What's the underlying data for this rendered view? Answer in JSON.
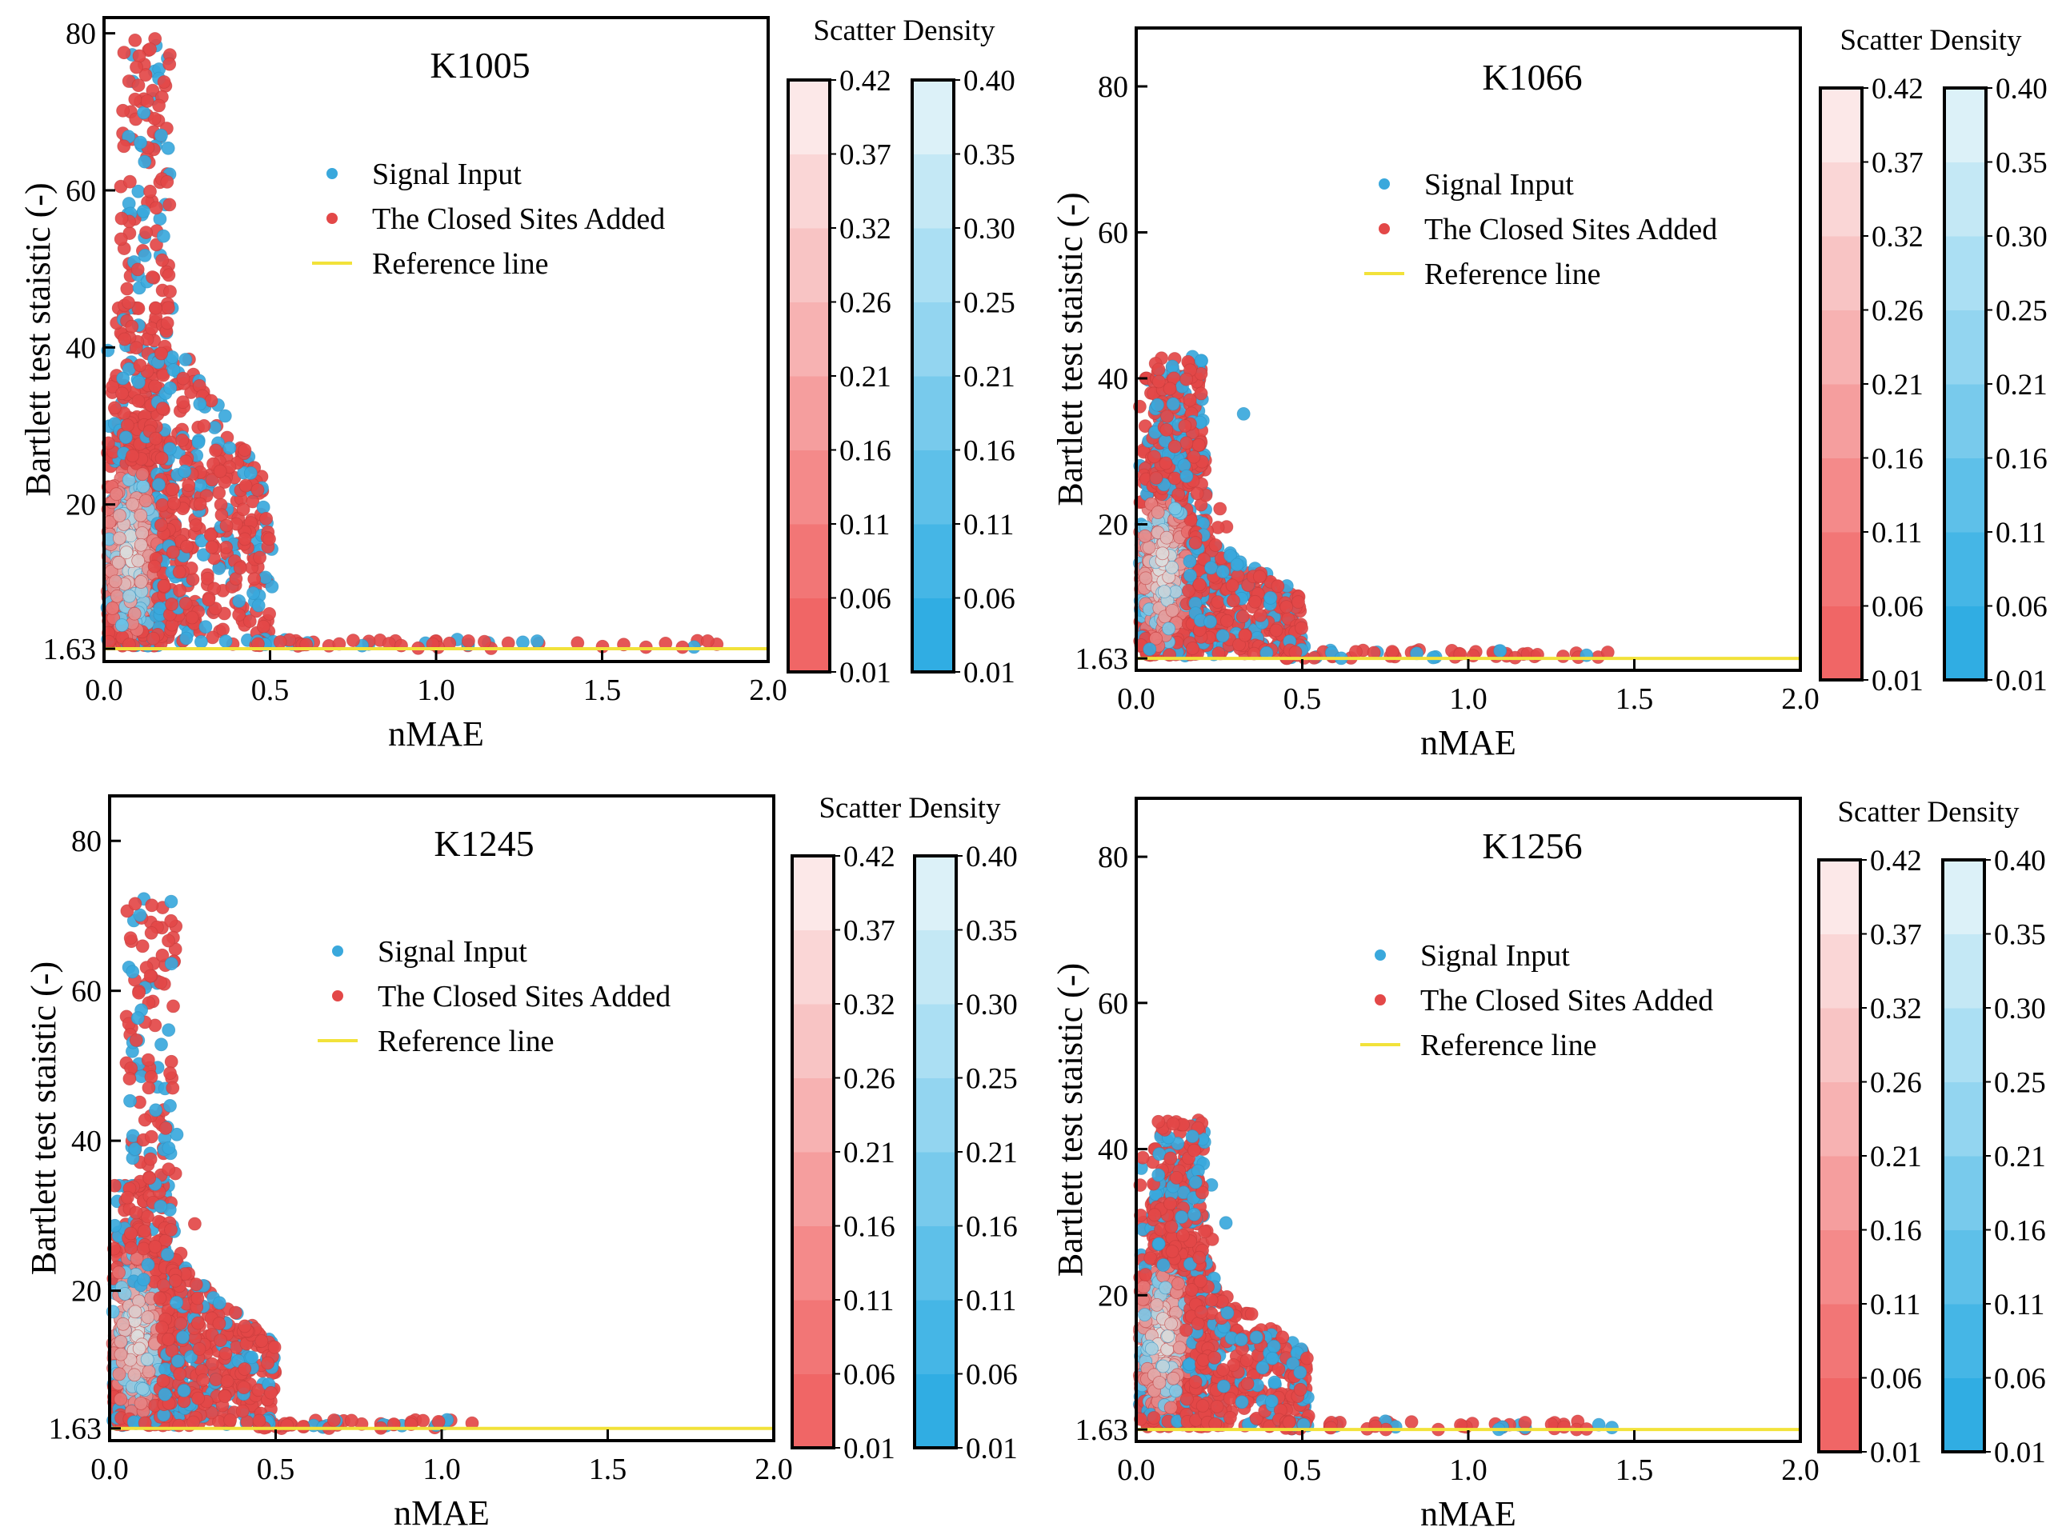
{
  "chart_data": [
    {
      "type": "scatter",
      "title": "K1005",
      "xlabel": "nMAE",
      "ylabel": "Bartlett test staistic (-)",
      "xlim": [
        0,
        2
      ],
      "ylim": [
        0,
        82
      ],
      "xticks": [
        "0.0",
        "0.5",
        "1.0",
        "1.5",
        "2.0"
      ],
      "yticks": [
        {
          "value": 1.63,
          "label": "1.63"
        },
        {
          "value": 20,
          "label": "20"
        },
        {
          "value": 40,
          "label": "40"
        },
        {
          "value": 60,
          "label": "60"
        },
        {
          "value": 80,
          "label": "80"
        }
      ],
      "reference_line": 1.63,
      "shape": {
        "peak_max": 80,
        "cluster_max": 45,
        "second_x": [
          0.15,
          0.5
        ],
        "second_max": 44,
        "tail_max_x": 1.85
      },
      "legend": [
        "Signal Input",
        "The Closed Sites Added",
        "Reference line"
      ],
      "colorbar_title": "Scatter Density",
      "colorbar_red_ticks": [
        "0.42",
        "0.37",
        "0.32",
        "0.26",
        "0.21",
        "0.16",
        "0.11",
        "0.06",
        "0.01"
      ],
      "colorbar_blue_ticks": [
        "0.40",
        "0.35",
        "0.30",
        "0.25",
        "0.21",
        "0.16",
        "0.11",
        "0.06",
        "0.01"
      ]
    },
    {
      "type": "scatter",
      "title": "K1066",
      "xlabel": "nMAE",
      "ylabel": "Bartlett test staistic (-)",
      "xlim": [
        0,
        2
      ],
      "ylim": [
        0,
        88
      ],
      "xticks": [
        "0.0",
        "0.5",
        "1.0",
        "1.5",
        "2.0"
      ],
      "yticks": [
        {
          "value": 1.63,
          "label": "1.63"
        },
        {
          "value": 20,
          "label": "20"
        },
        {
          "value": 40,
          "label": "40"
        },
        {
          "value": 60,
          "label": "60"
        },
        {
          "value": 80,
          "label": "80"
        }
      ],
      "reference_line": 1.63,
      "shape": {
        "peak_max": 43,
        "cluster_max": 40,
        "second_x": [
          0.15,
          0.5
        ],
        "second_max": 18,
        "tail_max_x": 1.45
      },
      "legend": [
        "Signal Input",
        "The Closed Sites Added",
        "Reference line"
      ],
      "colorbar_title": "Scatter Density",
      "colorbar_red_ticks": [
        "0.42",
        "0.37",
        "0.32",
        "0.26",
        "0.21",
        "0.16",
        "0.11",
        "0.06",
        "0.01"
      ],
      "colorbar_blue_ticks": [
        "0.40",
        "0.35",
        "0.30",
        "0.25",
        "0.21",
        "0.16",
        "0.11",
        "0.06",
        "0.01"
      ]
    },
    {
      "type": "scatter",
      "title": "K1245",
      "xlabel": "nMAE",
      "ylabel": "Bartlett test staistic (-)",
      "xlim": [
        0,
        2
      ],
      "ylim": [
        0,
        86
      ],
      "xticks": [
        "0.0",
        "0.5",
        "1.0",
        "1.5",
        "2.0"
      ],
      "yticks": [
        {
          "value": 1.63,
          "label": "1.63"
        },
        {
          "value": 20,
          "label": "20"
        },
        {
          "value": 40,
          "label": "40"
        },
        {
          "value": 60,
          "label": "60"
        },
        {
          "value": 80,
          "label": "80"
        }
      ],
      "reference_line": 1.63,
      "shape": {
        "peak_max": 73,
        "cluster_max": 34,
        "second_x": [
          0.15,
          0.5
        ],
        "second_max": 24,
        "tail_max_x": 1.1
      },
      "legend": [
        "Signal Input",
        "The Closed Sites Added",
        "Reference line"
      ],
      "colorbar_title": "Scatter Density",
      "colorbar_red_ticks": [
        "0.42",
        "0.37",
        "0.32",
        "0.26",
        "0.21",
        "0.16",
        "0.11",
        "0.06",
        "0.01"
      ],
      "colorbar_blue_ticks": [
        "0.40",
        "0.35",
        "0.30",
        "0.25",
        "0.21",
        "0.16",
        "0.11",
        "0.06",
        "0.01"
      ]
    },
    {
      "type": "scatter",
      "title": "K1256",
      "xlabel": "nMAE",
      "ylabel": "Bartlett test staistic (-)",
      "xlim": [
        0,
        2
      ],
      "ylim": [
        0,
        88
      ],
      "xticks": [
        "0.0",
        "0.5",
        "1.0",
        "1.5",
        "2.0"
      ],
      "yticks": [
        {
          "value": 1.63,
          "label": "1.63"
        },
        {
          "value": 20,
          "label": "20"
        },
        {
          "value": 40,
          "label": "40"
        },
        {
          "value": 60,
          "label": "60"
        },
        {
          "value": 80,
          "label": "80"
        }
      ],
      "reference_line": 1.63,
      "shape": {
        "peak_max": 44,
        "cluster_max": 40,
        "second_x": [
          0.15,
          0.52
        ],
        "second_max": 22,
        "tail_max_x": 1.45
      },
      "legend": [
        "Signal Input",
        "The Closed Sites Added",
        "Reference line"
      ],
      "colorbar_title": "Scatter Density",
      "colorbar_red_ticks": [
        "0.42",
        "0.37",
        "0.32",
        "0.26",
        "0.21",
        "0.16",
        "0.11",
        "0.06",
        "0.01"
      ],
      "colorbar_blue_ticks": [
        "0.40",
        "0.35",
        "0.30",
        "0.25",
        "0.21",
        "0.16",
        "0.11",
        "0.06",
        "0.01"
      ]
    }
  ],
  "colors": {
    "signal_input": "#3aa8dc",
    "closed_sites": "#e34848",
    "reference_line": "#f2e23a",
    "red_ramp": [
      "#f06666",
      "#f27676",
      "#f48a8a",
      "#f59e9e",
      "#f7b2b2",
      "#f8c4c4",
      "#fad6d6",
      "#fce8e8",
      "#f6f6f6"
    ],
    "blue_ramp": [
      "#30ade3",
      "#45b6e6",
      "#5ec0e9",
      "#78caec",
      "#93d5f0",
      "#abdff3",
      "#c4e8f5",
      "#dcf1f8",
      "#f4fafb"
    ]
  }
}
